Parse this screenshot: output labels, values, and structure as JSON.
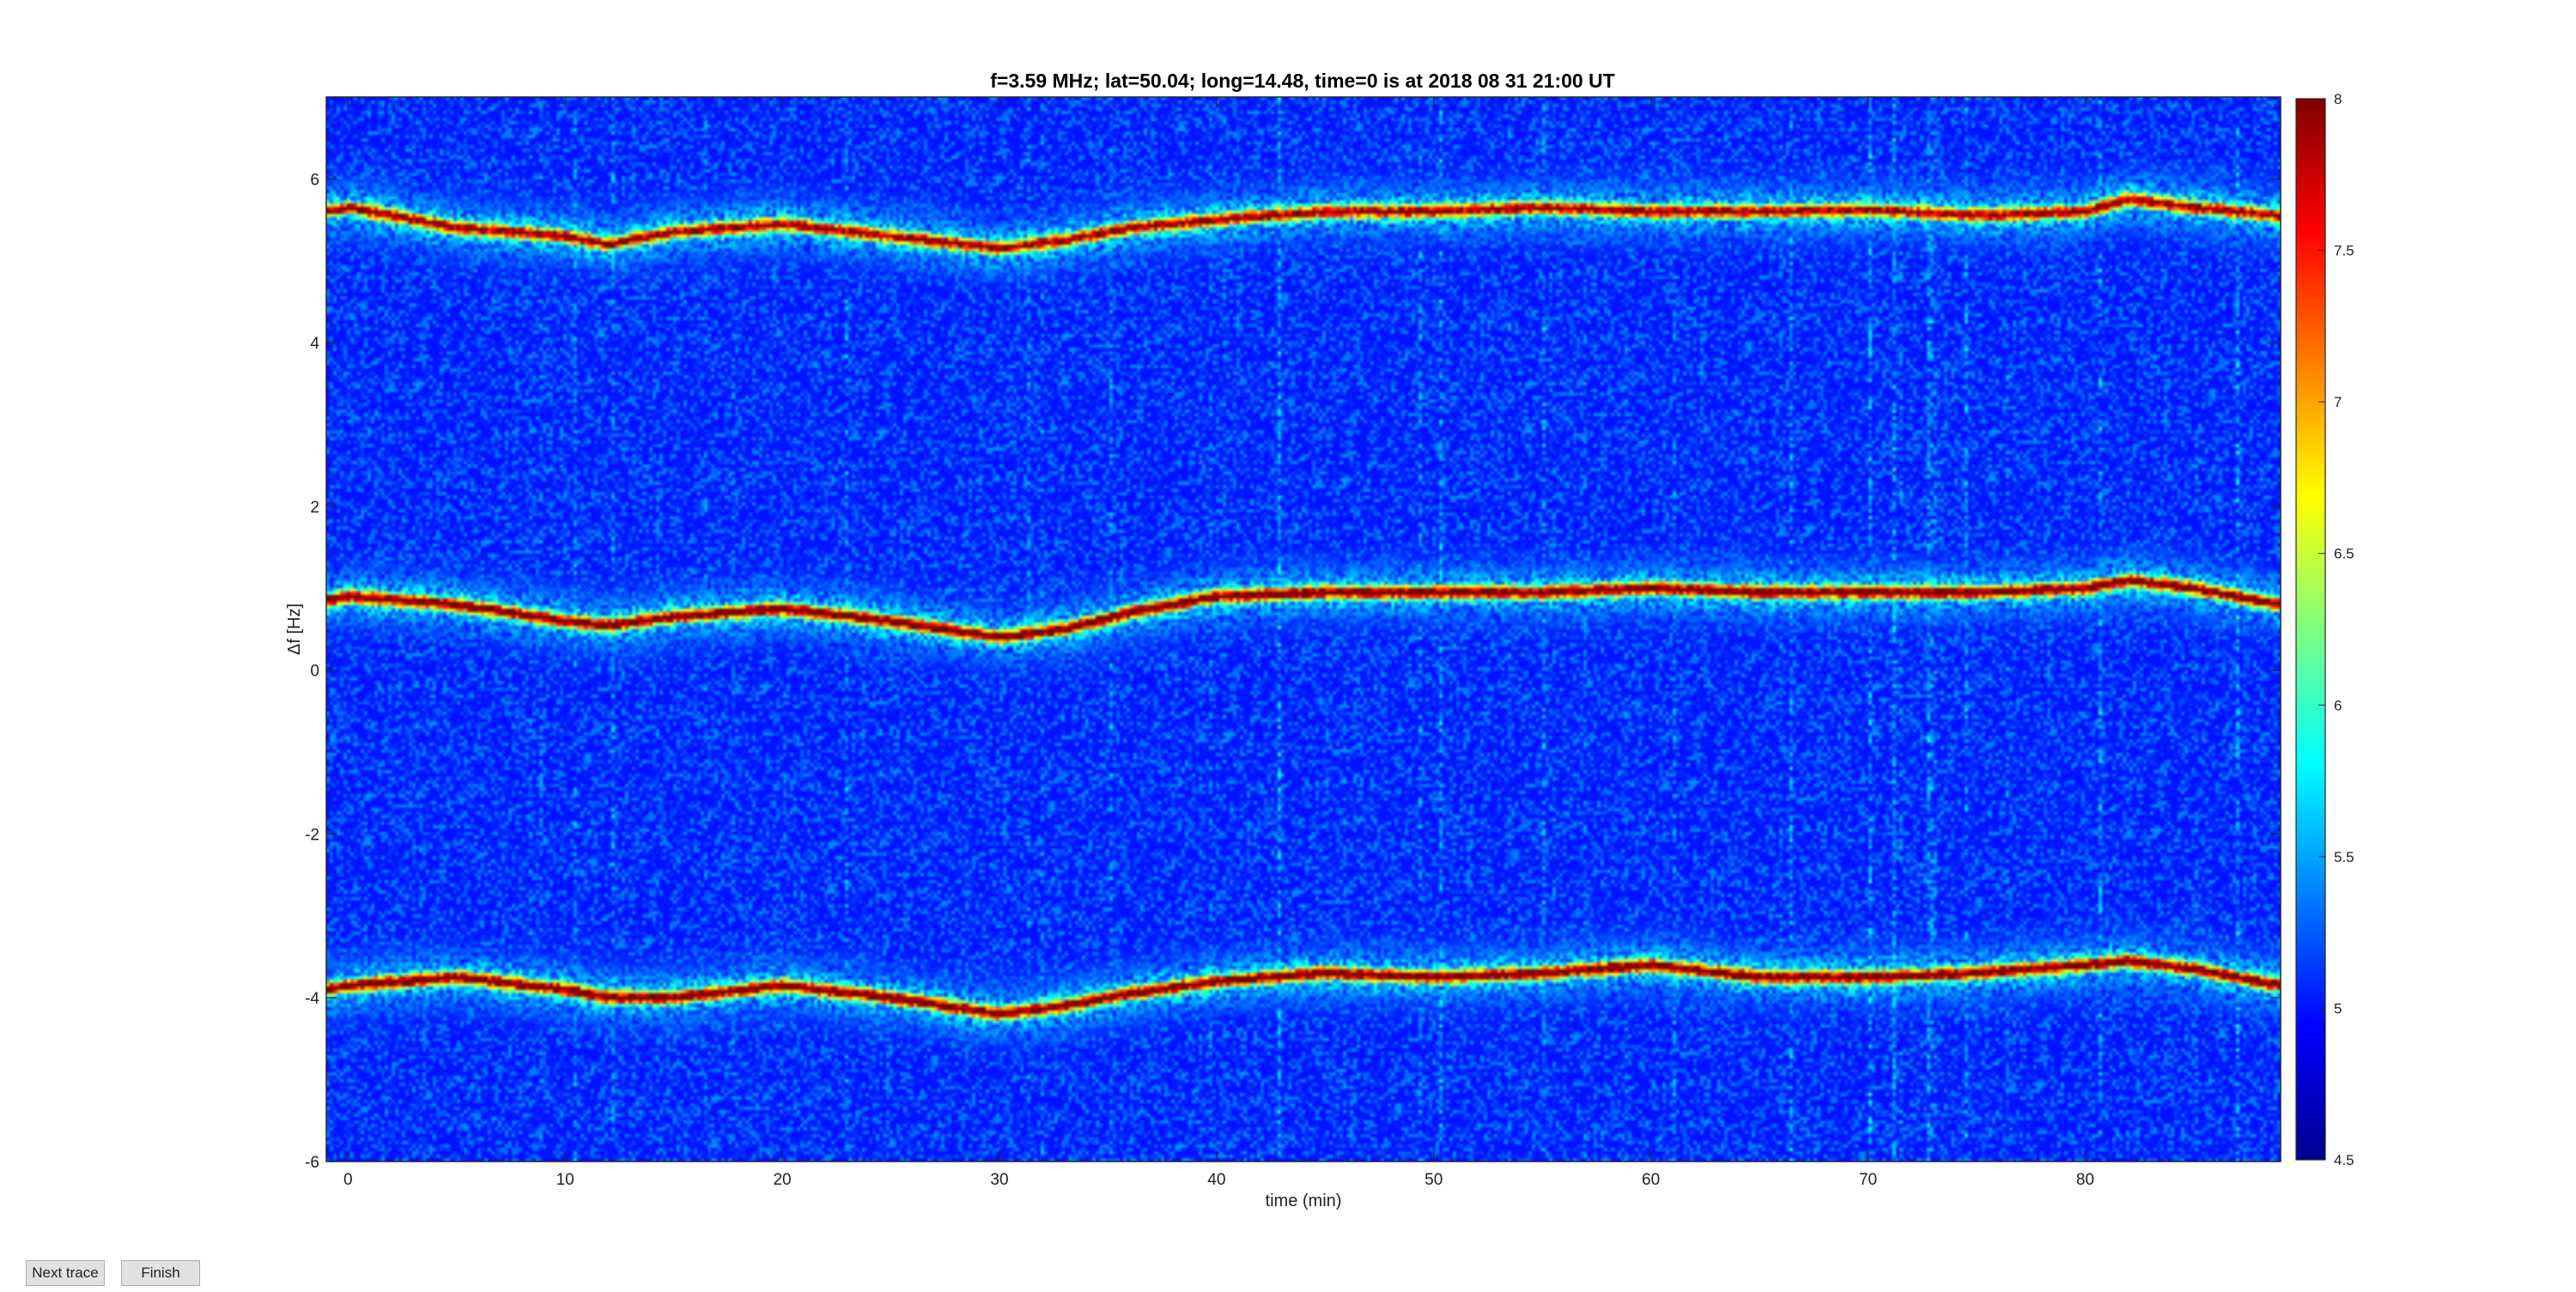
{
  "figure": {
    "title": "f=3.59 MHz;  lat=50.04; long=14.48, time=0 is at 2018 08 31 21:00 UT"
  },
  "buttons": {
    "next_label": "Next trace",
    "finish_label": "Finish"
  },
  "chart_data": {
    "type": "heatmap",
    "title": "f=3.59 MHz;  lat=50.04; long=14.48, time=0 is at 2018 08 31 21:00 UT",
    "xlabel": "time (min)",
    "ylabel": "Δf [Hz]",
    "xlim": [
      -1,
      89
    ],
    "ylim": [
      -6,
      7
    ],
    "xticks": [
      0,
      10,
      20,
      30,
      40,
      50,
      60,
      70,
      80
    ],
    "yticks": [
      -6,
      -4,
      -2,
      0,
      2,
      4,
      6
    ],
    "colorbar": {
      "range": [
        4.5,
        8
      ],
      "ticks": [
        4.5,
        5,
        5.5,
        6,
        6.5,
        7,
        7.5,
        8
      ],
      "tick_labels": [
        "4.5",
        "5",
        "5.5",
        "6",
        "6.5",
        "7",
        "7.5",
        "8"
      ],
      "colormap": "jet"
    },
    "background_level": 5.0,
    "traces": [
      {
        "time": [
          -1,
          0,
          5,
          10,
          12,
          15,
          20,
          25,
          30,
          33,
          36,
          40,
          45,
          50,
          55,
          60,
          65,
          70,
          75,
          80,
          82,
          85,
          89
        ],
        "freq": [
          5.6,
          5.65,
          5.4,
          5.3,
          5.2,
          5.35,
          5.45,
          5.3,
          5.15,
          5.25,
          5.4,
          5.5,
          5.6,
          5.6,
          5.65,
          5.6,
          5.6,
          5.62,
          5.55,
          5.6,
          5.75,
          5.65,
          5.55
        ],
        "peak": 7.6
      },
      {
        "time": [
          -1,
          0,
          5,
          10,
          12,
          15,
          20,
          25,
          30,
          33,
          36,
          40,
          45,
          50,
          55,
          60,
          65,
          70,
          75,
          80,
          82,
          85,
          89
        ],
        "freq": [
          0.85,
          0.9,
          0.8,
          0.6,
          0.55,
          0.65,
          0.75,
          0.6,
          0.4,
          0.5,
          0.7,
          0.9,
          0.95,
          0.95,
          0.95,
          1.0,
          0.95,
          0.95,
          0.95,
          1.0,
          1.1,
          1.0,
          0.8
        ],
        "peak": 7.9
      },
      {
        "time": [
          -1,
          0,
          5,
          10,
          12,
          15,
          20,
          25,
          30,
          33,
          36,
          40,
          45,
          50,
          55,
          60,
          65,
          70,
          75,
          80,
          82,
          85,
          89
        ],
        "freq": [
          -3.9,
          -3.85,
          -3.75,
          -3.9,
          -4.0,
          -4.0,
          -3.85,
          -4.0,
          -4.2,
          -4.1,
          -3.95,
          -3.8,
          -3.7,
          -3.75,
          -3.7,
          -3.6,
          -3.75,
          -3.75,
          -3.7,
          -3.6,
          -3.55,
          -3.65,
          -3.85
        ],
        "peak": 7.9
      }
    ]
  }
}
